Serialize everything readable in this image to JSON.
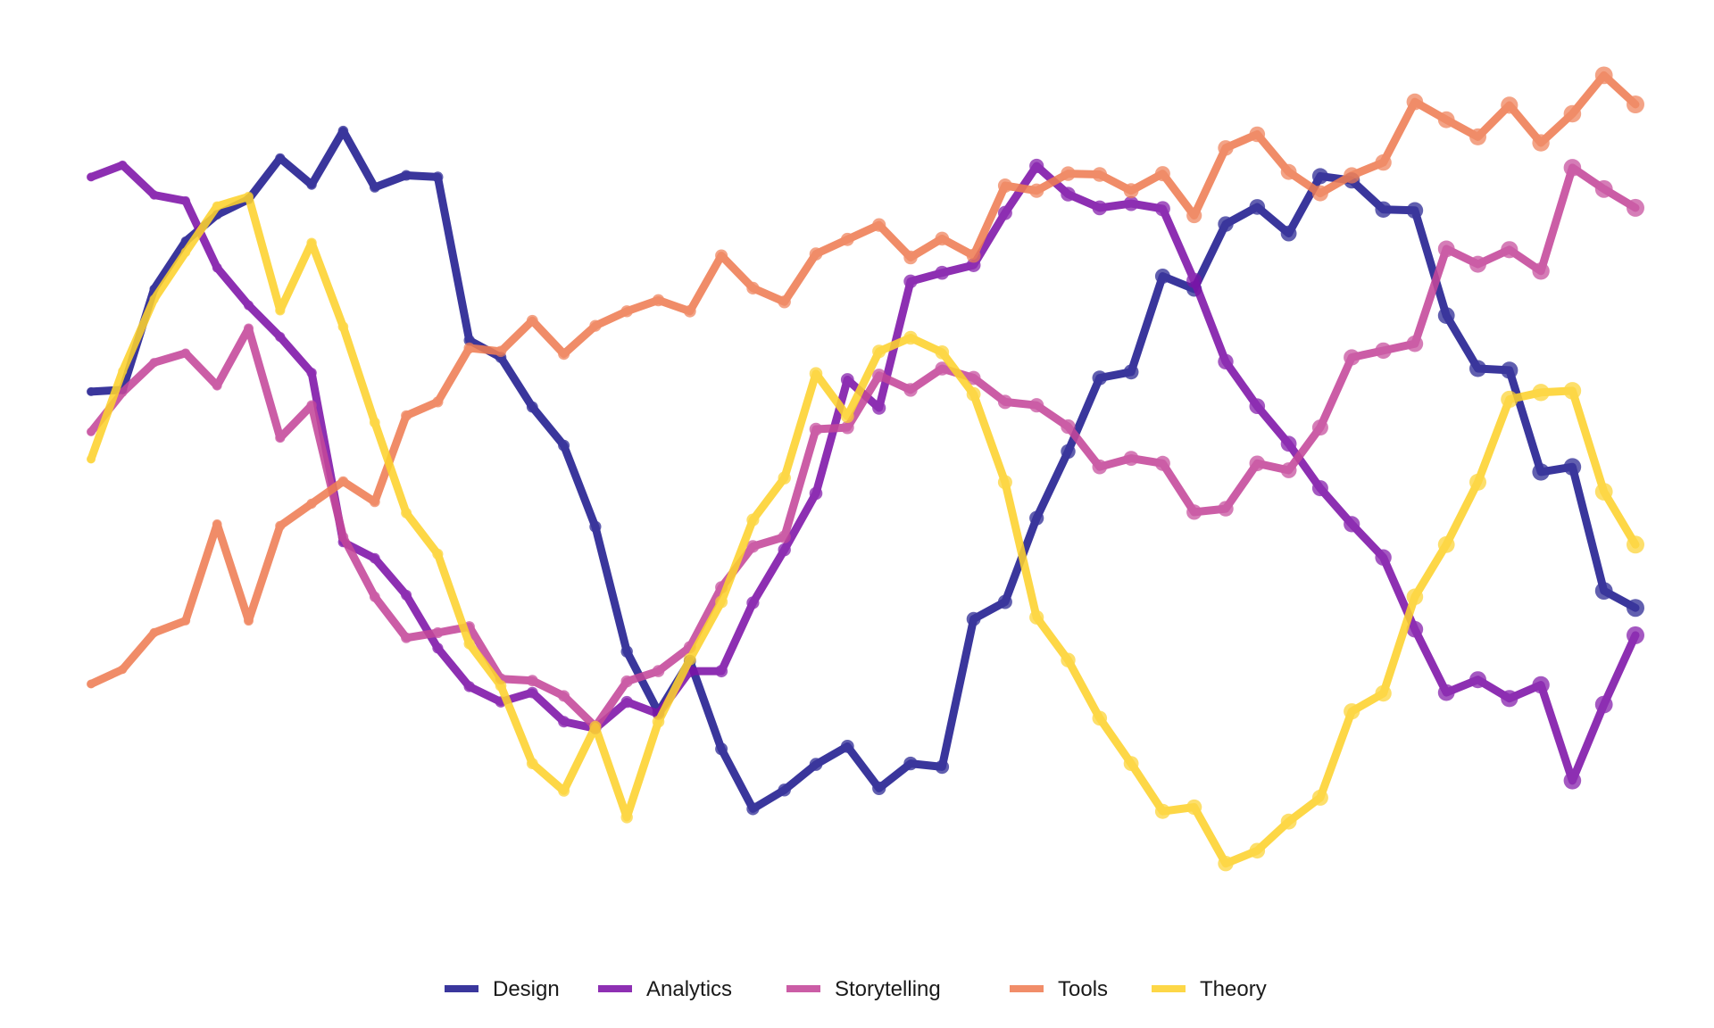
{
  "chart_data": {
    "type": "line",
    "title": "",
    "xlabel": "",
    "ylabel": "",
    "xlim": [
      0,
      49
    ],
    "ylim": [
      0,
      1
    ],
    "grid": false,
    "axes_visible": false,
    "legend_placement": "bottom-center",
    "x": [
      0,
      1,
      2,
      3,
      4,
      5,
      6,
      7,
      8,
      9,
      10,
      11,
      12,
      13,
      14,
      15,
      16,
      17,
      18,
      19,
      20,
      21,
      22,
      23,
      24,
      25,
      26,
      27,
      28,
      29,
      30,
      31,
      32,
      33,
      34,
      35,
      36,
      37,
      38,
      39,
      40,
      41,
      42,
      43,
      44,
      45,
      46,
      47,
      48,
      49
    ],
    "series": [
      {
        "name": "Design",
        "color": "#1f1b8f",
        "values": [
          0.592,
          0.594,
          0.712,
          0.768,
          0.799,
          0.817,
          0.865,
          0.834,
          0.897,
          0.831,
          0.845,
          0.843,
          0.652,
          0.632,
          0.574,
          0.529,
          0.434,
          0.288,
          0.217,
          0.277,
          0.174,
          0.104,
          0.126,
          0.156,
          0.177,
          0.128,
          0.157,
          0.153,
          0.326,
          0.346,
          0.444,
          0.522,
          0.608,
          0.615,
          0.727,
          0.712,
          0.788,
          0.808,
          0.777,
          0.844,
          0.839,
          0.805,
          0.804,
          0.681,
          0.619,
          0.617,
          0.498,
          0.504,
          0.359,
          0.339
        ]
      },
      {
        "name": "Analytics",
        "color": "#7e13a8",
        "values": [
          0.843,
          0.857,
          0.822,
          0.815,
          0.737,
          0.693,
          0.656,
          0.614,
          0.416,
          0.397,
          0.354,
          0.292,
          0.247,
          0.229,
          0.24,
          0.206,
          0.198,
          0.229,
          0.215,
          0.265,
          0.265,
          0.345,
          0.407,
          0.473,
          0.606,
          0.573,
          0.721,
          0.731,
          0.74,
          0.801,
          0.856,
          0.823,
          0.807,
          0.812,
          0.806,
          0.722,
          0.627,
          0.575,
          0.531,
          0.479,
          0.437,
          0.398,
          0.314,
          0.24,
          0.255,
          0.233,
          0.249,
          0.137,
          0.226,
          0.307
        ]
      },
      {
        "name": "Storytelling",
        "color": "#c4479a",
        "values": [
          0.545,
          0.591,
          0.626,
          0.637,
          0.599,
          0.666,
          0.538,
          0.576,
          0.422,
          0.352,
          0.304,
          0.31,
          0.317,
          0.256,
          0.254,
          0.236,
          0.2,
          0.253,
          0.265,
          0.293,
          0.363,
          0.411,
          0.422,
          0.548,
          0.55,
          0.611,
          0.594,
          0.619,
          0.608,
          0.58,
          0.576,
          0.551,
          0.504,
          0.514,
          0.508,
          0.451,
          0.455,
          0.508,
          0.5,
          0.55,
          0.632,
          0.64,
          0.648,
          0.759,
          0.741,
          0.758,
          0.733,
          0.854,
          0.829,
          0.807
        ]
      },
      {
        "name": "Tools",
        "color": "#ef7d54",
        "values": [
          0.25,
          0.267,
          0.31,
          0.324,
          0.437,
          0.324,
          0.435,
          0.461,
          0.487,
          0.463,
          0.564,
          0.58,
          0.643,
          0.639,
          0.675,
          0.636,
          0.669,
          0.686,
          0.699,
          0.686,
          0.751,
          0.713,
          0.697,
          0.753,
          0.77,
          0.787,
          0.749,
          0.771,
          0.751,
          0.833,
          0.827,
          0.847,
          0.846,
          0.827,
          0.847,
          0.798,
          0.877,
          0.893,
          0.849,
          0.824,
          0.845,
          0.86,
          0.931,
          0.91,
          0.89,
          0.927,
          0.883,
          0.917,
          0.962,
          0.928
        ]
      },
      {
        "name": "Theory",
        "color": "#fdd22d",
        "values": [
          0.513,
          0.616,
          0.7,
          0.755,
          0.809,
          0.82,
          0.687,
          0.766,
          0.668,
          0.556,
          0.45,
          0.402,
          0.297,
          0.248,
          0.157,
          0.125,
          0.2,
          0.094,
          0.206,
          0.279,
          0.346,
          0.442,
          0.491,
          0.613,
          0.563,
          0.639,
          0.655,
          0.638,
          0.589,
          0.486,
          0.328,
          0.278,
          0.21,
          0.157,
          0.101,
          0.106,
          0.04,
          0.055,
          0.089,
          0.117,
          0.218,
          0.239,
          0.352,
          0.413,
          0.486,
          0.583,
          0.591,
          0.593,
          0.475,
          0.413
        ]
      }
    ]
  }
}
